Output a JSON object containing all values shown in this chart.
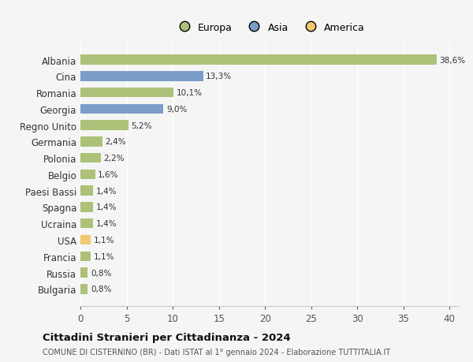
{
  "categories": [
    "Albania",
    "Cina",
    "Romania",
    "Georgia",
    "Regno Unito",
    "Germania",
    "Polonia",
    "Belgio",
    "Paesi Bassi",
    "Spagna",
    "Ucraina",
    "USA",
    "Francia",
    "Russia",
    "Bulgaria"
  ],
  "values": [
    38.6,
    13.3,
    10.1,
    9.0,
    5.2,
    2.4,
    2.2,
    1.6,
    1.4,
    1.4,
    1.4,
    1.1,
    1.1,
    0.8,
    0.8
  ],
  "labels": [
    "38,6%",
    "13,3%",
    "10,1%",
    "9,0%",
    "5,2%",
    "2,4%",
    "2,2%",
    "1,6%",
    "1,4%",
    "1,4%",
    "1,4%",
    "1,1%",
    "1,1%",
    "0,8%",
    "0,8%"
  ],
  "colors": [
    "#adc178",
    "#7b9ec8",
    "#adc178",
    "#7b9ec8",
    "#adc178",
    "#adc178",
    "#adc178",
    "#adc178",
    "#adc178",
    "#adc178",
    "#adc178",
    "#f0c96e",
    "#adc178",
    "#adc178",
    "#adc178"
  ],
  "legend_labels": [
    "Europa",
    "Asia",
    "America"
  ],
  "legend_colors": [
    "#adc178",
    "#7b9ec8",
    "#f0c96e"
  ],
  "xlim": [
    0,
    41
  ],
  "xticks": [
    0,
    5,
    10,
    15,
    20,
    25,
    30,
    35,
    40
  ],
  "title": "Cittadini Stranieri per Cittadinanza - 2024",
  "subtitle": "COMUNE DI CISTERNINO (BR) - Dati ISTAT al 1° gennaio 2024 - Elaborazione TUTTITALIA.IT",
  "background_color": "#f5f5f5",
  "bar_height": 0.6,
  "figsize": [
    6.0,
    4.6
  ],
  "dpi": 100
}
